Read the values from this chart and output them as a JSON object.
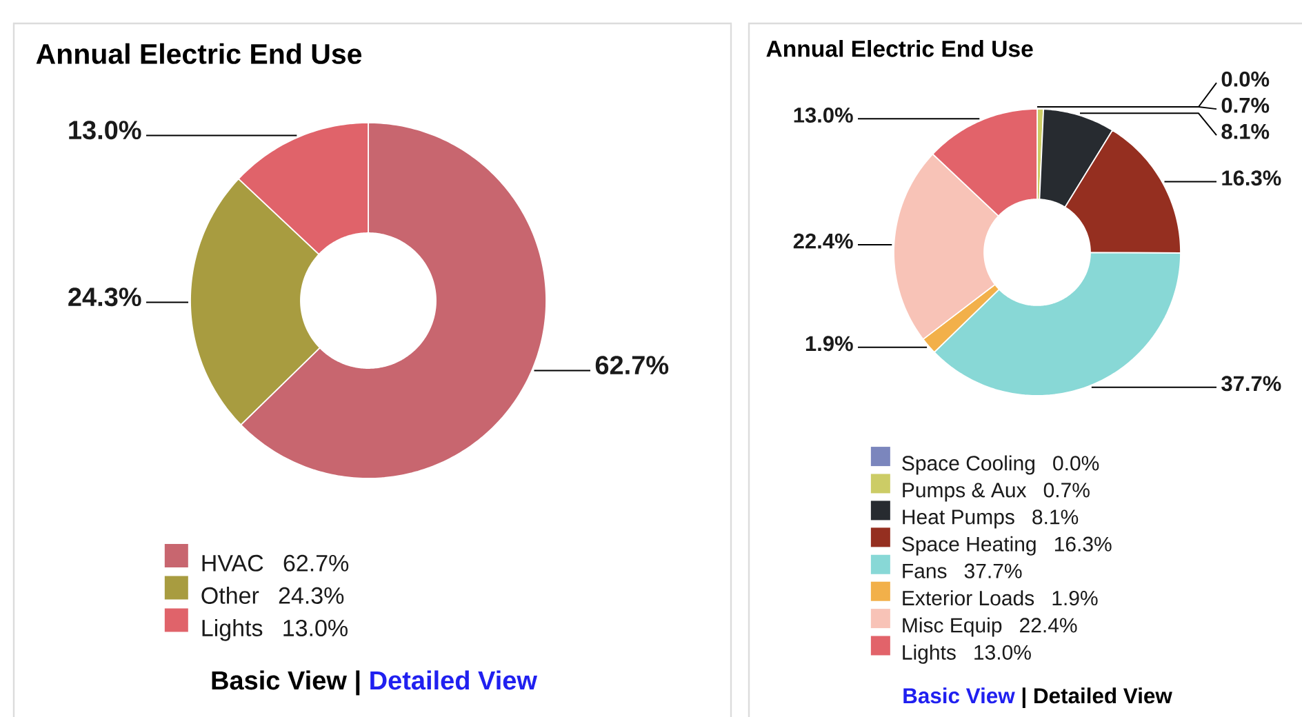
{
  "chart_data": [
    {
      "type": "donut",
      "title": "Annual Electric End Use",
      "categories": [
        "HVAC",
        "Other",
        "Lights"
      ],
      "values": [
        62.7,
        24.3,
        13.0
      ],
      "colors": [
        "#c8666f",
        "#a89c40",
        "#e0636a"
      ],
      "value_labels": [
        "62.7%",
        "24.3%",
        "13.0%"
      ],
      "legend": "bottom",
      "annotations": [
        "Basic View",
        "|",
        "Detailed View"
      ]
    },
    {
      "type": "donut",
      "title": "Annual Electric End Use",
      "categories": [
        "Space Cooling",
        "Pumps & Aux",
        "Heat Pumps",
        "Space Heating",
        "Fans",
        "Exterior Loads",
        "Misc Equip",
        "Lights"
      ],
      "values": [
        0.0,
        0.7,
        8.1,
        16.3,
        37.7,
        1.9,
        22.4,
        13.0
      ],
      "colors": [
        "#7b86bd",
        "#cccc66",
        "#272b30",
        "#952f20",
        "#88d8d6",
        "#f2b04a",
        "#f8c3b7",
        "#e2636a"
      ],
      "value_labels": [
        "0.0%",
        "0.7%",
        "8.1%",
        "16.3%",
        "37.7%",
        "1.9%",
        "22.4%",
        "13.0%"
      ],
      "legend": "bottom",
      "annotations": [
        "Basic View",
        "|",
        "Detailed View"
      ]
    }
  ]
}
